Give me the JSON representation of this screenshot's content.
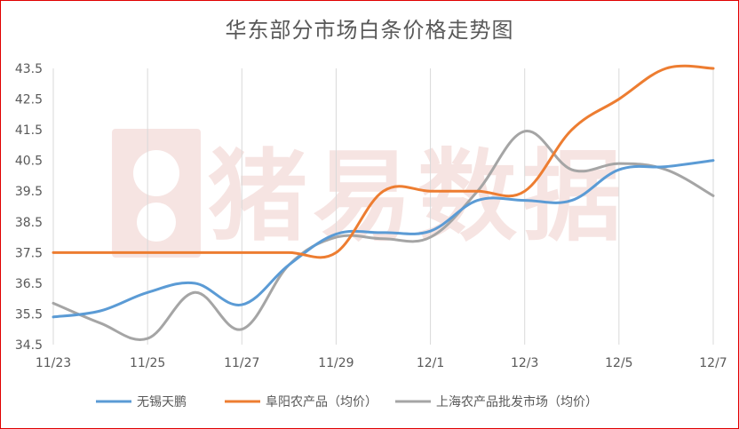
{
  "chart_data": {
    "type": "line",
    "title": "华东部分市场白条价格走势图",
    "x": [
      "11/23",
      "11/24",
      "11/25",
      "11/26",
      "11/27",
      "11/28",
      "11/29",
      "11/30",
      "12/1",
      "12/2",
      "12/3",
      "12/4",
      "12/5",
      "12/6",
      "12/7"
    ],
    "x_tick_labels": [
      "11/23",
      "11/25",
      "11/27",
      "11/29",
      "12/1",
      "12/3",
      "12/5",
      "12/7"
    ],
    "y_ticks": [
      "34.5",
      "35.5",
      "36.5",
      "37.5",
      "38.5",
      "39.5",
      "40.5",
      "41.5",
      "42.5",
      "43.5"
    ],
    "ylim": [
      34.5,
      43.5
    ],
    "grid": "vertical",
    "legend_position": "bottom",
    "watermark": "猪易数据",
    "series": [
      {
        "name": "无锡天鹏",
        "color": "#5B9BD5",
        "values": [
          35.4,
          35.6,
          36.2,
          36.5,
          35.8,
          37.1,
          38.1,
          38.15,
          38.2,
          39.2,
          39.2,
          39.2,
          40.2,
          40.3,
          40.5
        ]
      },
      {
        "name": "阜阳农产品（均价）",
        "color": "#ED7D31",
        "values": [
          37.5,
          37.5,
          37.5,
          37.5,
          37.5,
          37.5,
          37.5,
          39.5,
          39.5,
          39.5,
          39.5,
          41.5,
          42.5,
          43.5,
          43.5
        ]
      },
      {
        "name": "上海农产品批发市场（均价）",
        "color": "#A5A5A5",
        "values": [
          35.85,
          35.2,
          34.7,
          36.2,
          35.0,
          37.1,
          38.0,
          37.95,
          38.0,
          39.5,
          41.45,
          40.2,
          40.4,
          40.2,
          39.35
        ]
      }
    ]
  }
}
